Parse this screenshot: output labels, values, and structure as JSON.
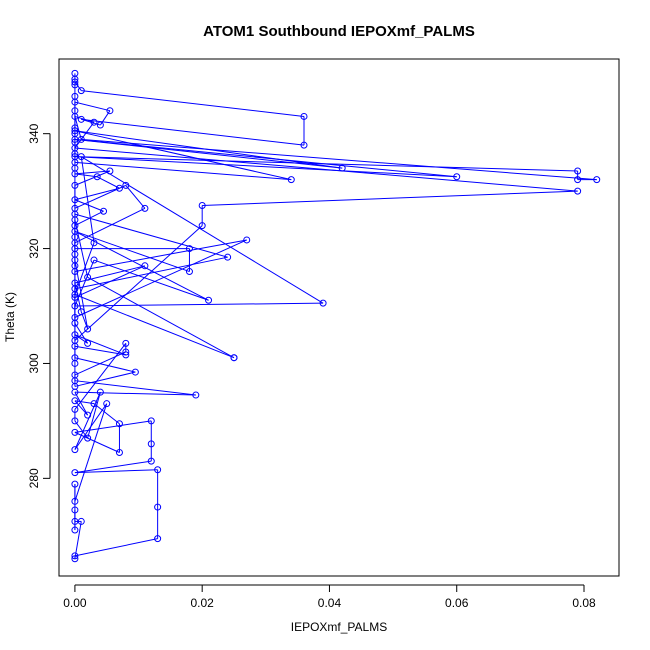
{
  "chart_data": {
    "type": "line",
    "title": "ATOM1 Southbound IEPOXmf_PALMS",
    "xlabel": "IEPOXmf_PALMS",
    "ylabel": "Theta (K)",
    "xlim": [
      -0.0025,
      0.0855
    ],
    "ylim": [
      263.0,
      353.0
    ],
    "x_ticks": [
      0.0,
      0.02,
      0.04,
      0.06,
      0.08
    ],
    "x_tick_labels": [
      "0.00",
      "0.02",
      "0.04",
      "0.06",
      "0.08"
    ],
    "y_ticks": [
      280,
      300,
      320,
      340
    ],
    "y_tick_labels": [
      "280",
      "300",
      "320",
      "340"
    ],
    "grid": false,
    "series_color": "#0000ff",
    "marker": "open-circle",
    "series": [
      {
        "points": [
          [
            0.0,
            350.5
          ],
          [
            0.0,
            349.0
          ],
          [
            0.001,
            347.5
          ],
          [
            0.036,
            343.0
          ],
          [
            0.036,
            338.0
          ],
          [
            0.001,
            342.5
          ],
          [
            0.004,
            341.5
          ],
          [
            0.0055,
            344.0
          ],
          [
            0.0,
            345.5
          ],
          [
            0.0,
            340.0
          ],
          [
            0.0,
            335.0
          ],
          [
            0.034,
            332.0
          ],
          [
            0.0,
            340.5
          ],
          [
            0.042,
            334.0
          ],
          [
            0.0,
            339.0
          ],
          [
            0.06,
            332.5
          ],
          [
            0.0,
            336.0
          ],
          [
            0.079,
            333.5
          ],
          [
            0.079,
            332.0
          ],
          [
            0.082,
            332.0
          ],
          [
            0.001,
            339.0
          ],
          [
            0.0,
            343.0
          ],
          [
            0.003,
            342.0
          ],
          [
            0.0,
            337.5
          ],
          [
            0.079,
            330.0
          ],
          [
            0.02,
            327.5
          ],
          [
            0.02,
            324.0
          ],
          [
            0.0,
            304.0
          ],
          [
            0.0,
            316.0
          ],
          [
            0.027,
            321.5
          ],
          [
            0.0,
            308.0
          ],
          [
            0.0,
            313.0
          ],
          [
            0.024,
            318.5
          ],
          [
            0.0,
            326.0
          ],
          [
            0.0,
            320.0
          ],
          [
            0.018,
            320.0
          ],
          [
            0.018,
            316.0
          ],
          [
            0.0,
            323.0
          ],
          [
            0.021,
            311.0
          ],
          [
            0.003,
            318.0
          ],
          [
            0.0,
            310.0
          ],
          [
            0.039,
            310.5
          ],
          [
            0.001,
            336.0
          ],
          [
            0.003,
            321.0
          ],
          [
            0.0,
            312.0
          ],
          [
            0.025,
            301.0
          ],
          [
            0.025,
            301.0
          ],
          [
            0.002,
            315.0
          ],
          [
            0.0,
            325.0
          ],
          [
            0.0,
            300.0
          ],
          [
            0.0,
            297.0
          ],
          [
            0.019,
            294.5
          ],
          [
            0.0,
            295.0
          ],
          [
            0.002,
            291.0
          ],
          [
            0.0,
            293.5
          ],
          [
            0.003,
            293.0
          ],
          [
            0.007,
            289.5
          ],
          [
            0.007,
            284.5
          ],
          [
            0.0,
            288.0
          ],
          [
            0.012,
            290.0
          ],
          [
            0.012,
            286.0
          ],
          [
            0.012,
            283.0
          ],
          [
            0.0,
            281.0
          ],
          [
            0.013,
            281.5
          ],
          [
            0.013,
            275.0
          ],
          [
            0.013,
            269.5
          ],
          [
            0.0,
            266.5
          ],
          [
            0.0,
            266.0
          ],
          [
            0.001,
            272.5
          ],
          [
            0.0,
            272.5
          ],
          [
            0.0,
            274.5
          ],
          [
            0.0,
            271.0
          ],
          [
            0.0,
            279.0
          ],
          [
            0.0,
            276.0
          ],
          [
            0.005,
            293.0
          ],
          [
            0.0,
            285.0
          ],
          [
            0.004,
            295.0
          ],
          [
            0.002,
            287.0
          ],
          [
            0.0,
            290.0
          ],
          [
            0.0,
            292.0
          ],
          [
            0.008,
            303.5
          ],
          [
            0.008,
            302.0
          ],
          [
            0.0,
            298.0
          ],
          [
            0.0,
            296.0
          ],
          [
            0.0095,
            298.5
          ],
          [
            0.0,
            301.0
          ],
          [
            0.0,
            303.0
          ],
          [
            0.008,
            301.5
          ],
          [
            0.0,
            305.0
          ],
          [
            0.002,
            303.5
          ],
          [
            0.0,
            307.0
          ],
          [
            0.0,
            311.5
          ],
          [
            0.011,
            317.0
          ],
          [
            0.0,
            314.0
          ],
          [
            0.001,
            309.0
          ],
          [
            0.002,
            306.0
          ],
          [
            0.0,
            318.0
          ],
          [
            0.0,
            321.0
          ],
          [
            0.011,
            327.0
          ],
          [
            0.008,
            331.0
          ],
          [
            0.0,
            327.0
          ],
          [
            0.0,
            331.0
          ],
          [
            0.0055,
            333.5
          ],
          [
            0.0,
            333.0
          ],
          [
            0.0035,
            332.5
          ],
          [
            0.007,
            330.5
          ],
          [
            0.0,
            328.5
          ],
          [
            0.0045,
            326.5
          ],
          [
            0.0,
            324.0
          ],
          [
            0.0,
            322.0
          ],
          [
            0.0,
            319.0
          ],
          [
            0.0,
            317.0
          ],
          [
            0.0,
            334.0
          ],
          [
            0.0,
            336.5
          ],
          [
            0.0,
            338.5
          ],
          [
            0.0,
            341.0
          ],
          [
            0.0,
            344.0
          ],
          [
            0.0,
            346.5
          ],
          [
            0.0,
            348.5
          ],
          [
            0.0,
            349.5
          ]
        ]
      }
    ]
  }
}
